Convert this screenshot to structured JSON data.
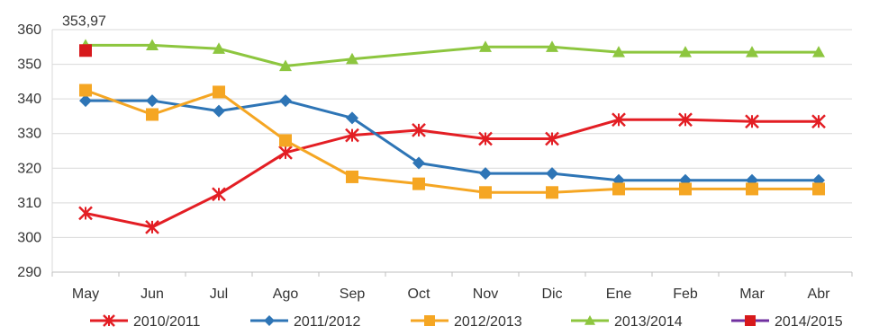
{
  "chart_data": {
    "type": "line",
    "title": "",
    "xlabel": "",
    "ylabel": "",
    "categories": [
      "May",
      "Jun",
      "Jul",
      "Ago",
      "Sep",
      "Oct",
      "Nov",
      "Dic",
      "Ene",
      "Feb",
      "Mar",
      "Abr"
    ],
    "ylim": [
      290,
      360
    ],
    "yticks": [
      290,
      300,
      310,
      320,
      330,
      340,
      350,
      360
    ],
    "grid": "horizontal",
    "legend_position": "bottom",
    "annotations": [
      {
        "text": "353,97",
        "series": "2014/2015",
        "category": "May",
        "value": 353.97
      }
    ],
    "series": [
      {
        "name": "2010/2011",
        "color": "#e31e24",
        "marker": "star",
        "values": [
          307,
          303,
          312.5,
          324.5,
          329.5,
          331,
          328.5,
          328.5,
          334,
          334,
          333.5,
          333.5
        ]
      },
      {
        "name": "2011/2012",
        "color": "#2e75b6",
        "marker": "diamond",
        "values": [
          339.5,
          339.5,
          336.5,
          339.5,
          334.5,
          321.5,
          318.5,
          318.5,
          316.5,
          316.5,
          316.5,
          316.5
        ]
      },
      {
        "name": "2012/2013",
        "color": "#f5a623",
        "marker": "square",
        "values": [
          342.5,
          335.5,
          342,
          328,
          317.5,
          315.5,
          313,
          313,
          314,
          314,
          314,
          314
        ]
      },
      {
        "name": "2013/2014",
        "color": "#8dc63f",
        "marker": "triangle",
        "values": [
          355.5,
          355.5,
          354.5,
          349.5,
          351.5,
          null,
          355,
          355,
          353.5,
          353.5,
          353.5,
          353.5
        ]
      },
      {
        "name": "2014/2015",
        "color": "#7030a0",
        "marker_color": "#d7191c",
        "marker": "square",
        "values": [
          353.97,
          null,
          null,
          null,
          null,
          null,
          null,
          null,
          null,
          null,
          null,
          null
        ]
      }
    ]
  }
}
